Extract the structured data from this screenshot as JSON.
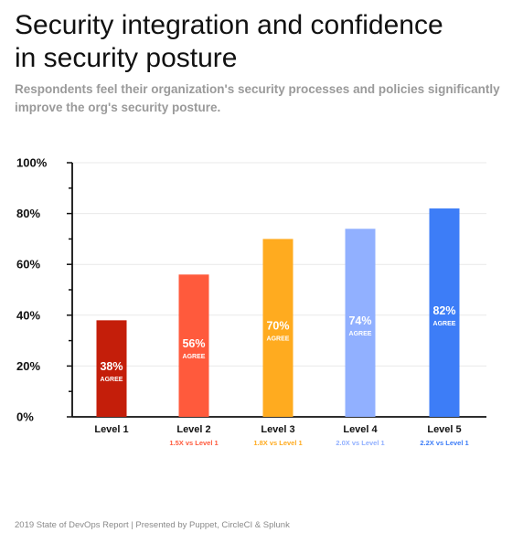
{
  "header": {
    "title_line1": "Security integration and confidence",
    "title_line2": "in security posture",
    "subtitle_line1": "Respondents feel their organization's security processes and policies significantly",
    "subtitle_line2": "improve the org's security posture."
  },
  "footer": {
    "text": "2019 State of DevOps Report | Presented by Puppet, CircleCI & Splunk"
  },
  "chart_data": {
    "type": "bar",
    "categories": [
      "Level 1",
      "Level 2",
      "Level 3",
      "Level 4",
      "Level 5"
    ],
    "values": [
      38,
      56,
      70,
      74,
      82
    ],
    "value_labels": [
      "38%",
      "56%",
      "70%",
      "74%",
      "82%"
    ],
    "bar_sublabel": "AGREE",
    "comparisons": [
      "",
      "1.5X vs Level 1",
      "1.8X vs Level 1",
      "2.0X vs Level 1",
      "2.2X vs Level 1"
    ],
    "colors": [
      "#c41e0a",
      "#ff5a3c",
      "#ffab1f",
      "#91b0ff",
      "#3d7df7"
    ],
    "ylim": [
      0,
      100
    ],
    "yticks": [
      0,
      20,
      40,
      60,
      80,
      100
    ],
    "ytick_labels": [
      "0%",
      "20%",
      "40%",
      "60%",
      "80%",
      "100%"
    ],
    "grid": true,
    "legend": "none"
  }
}
